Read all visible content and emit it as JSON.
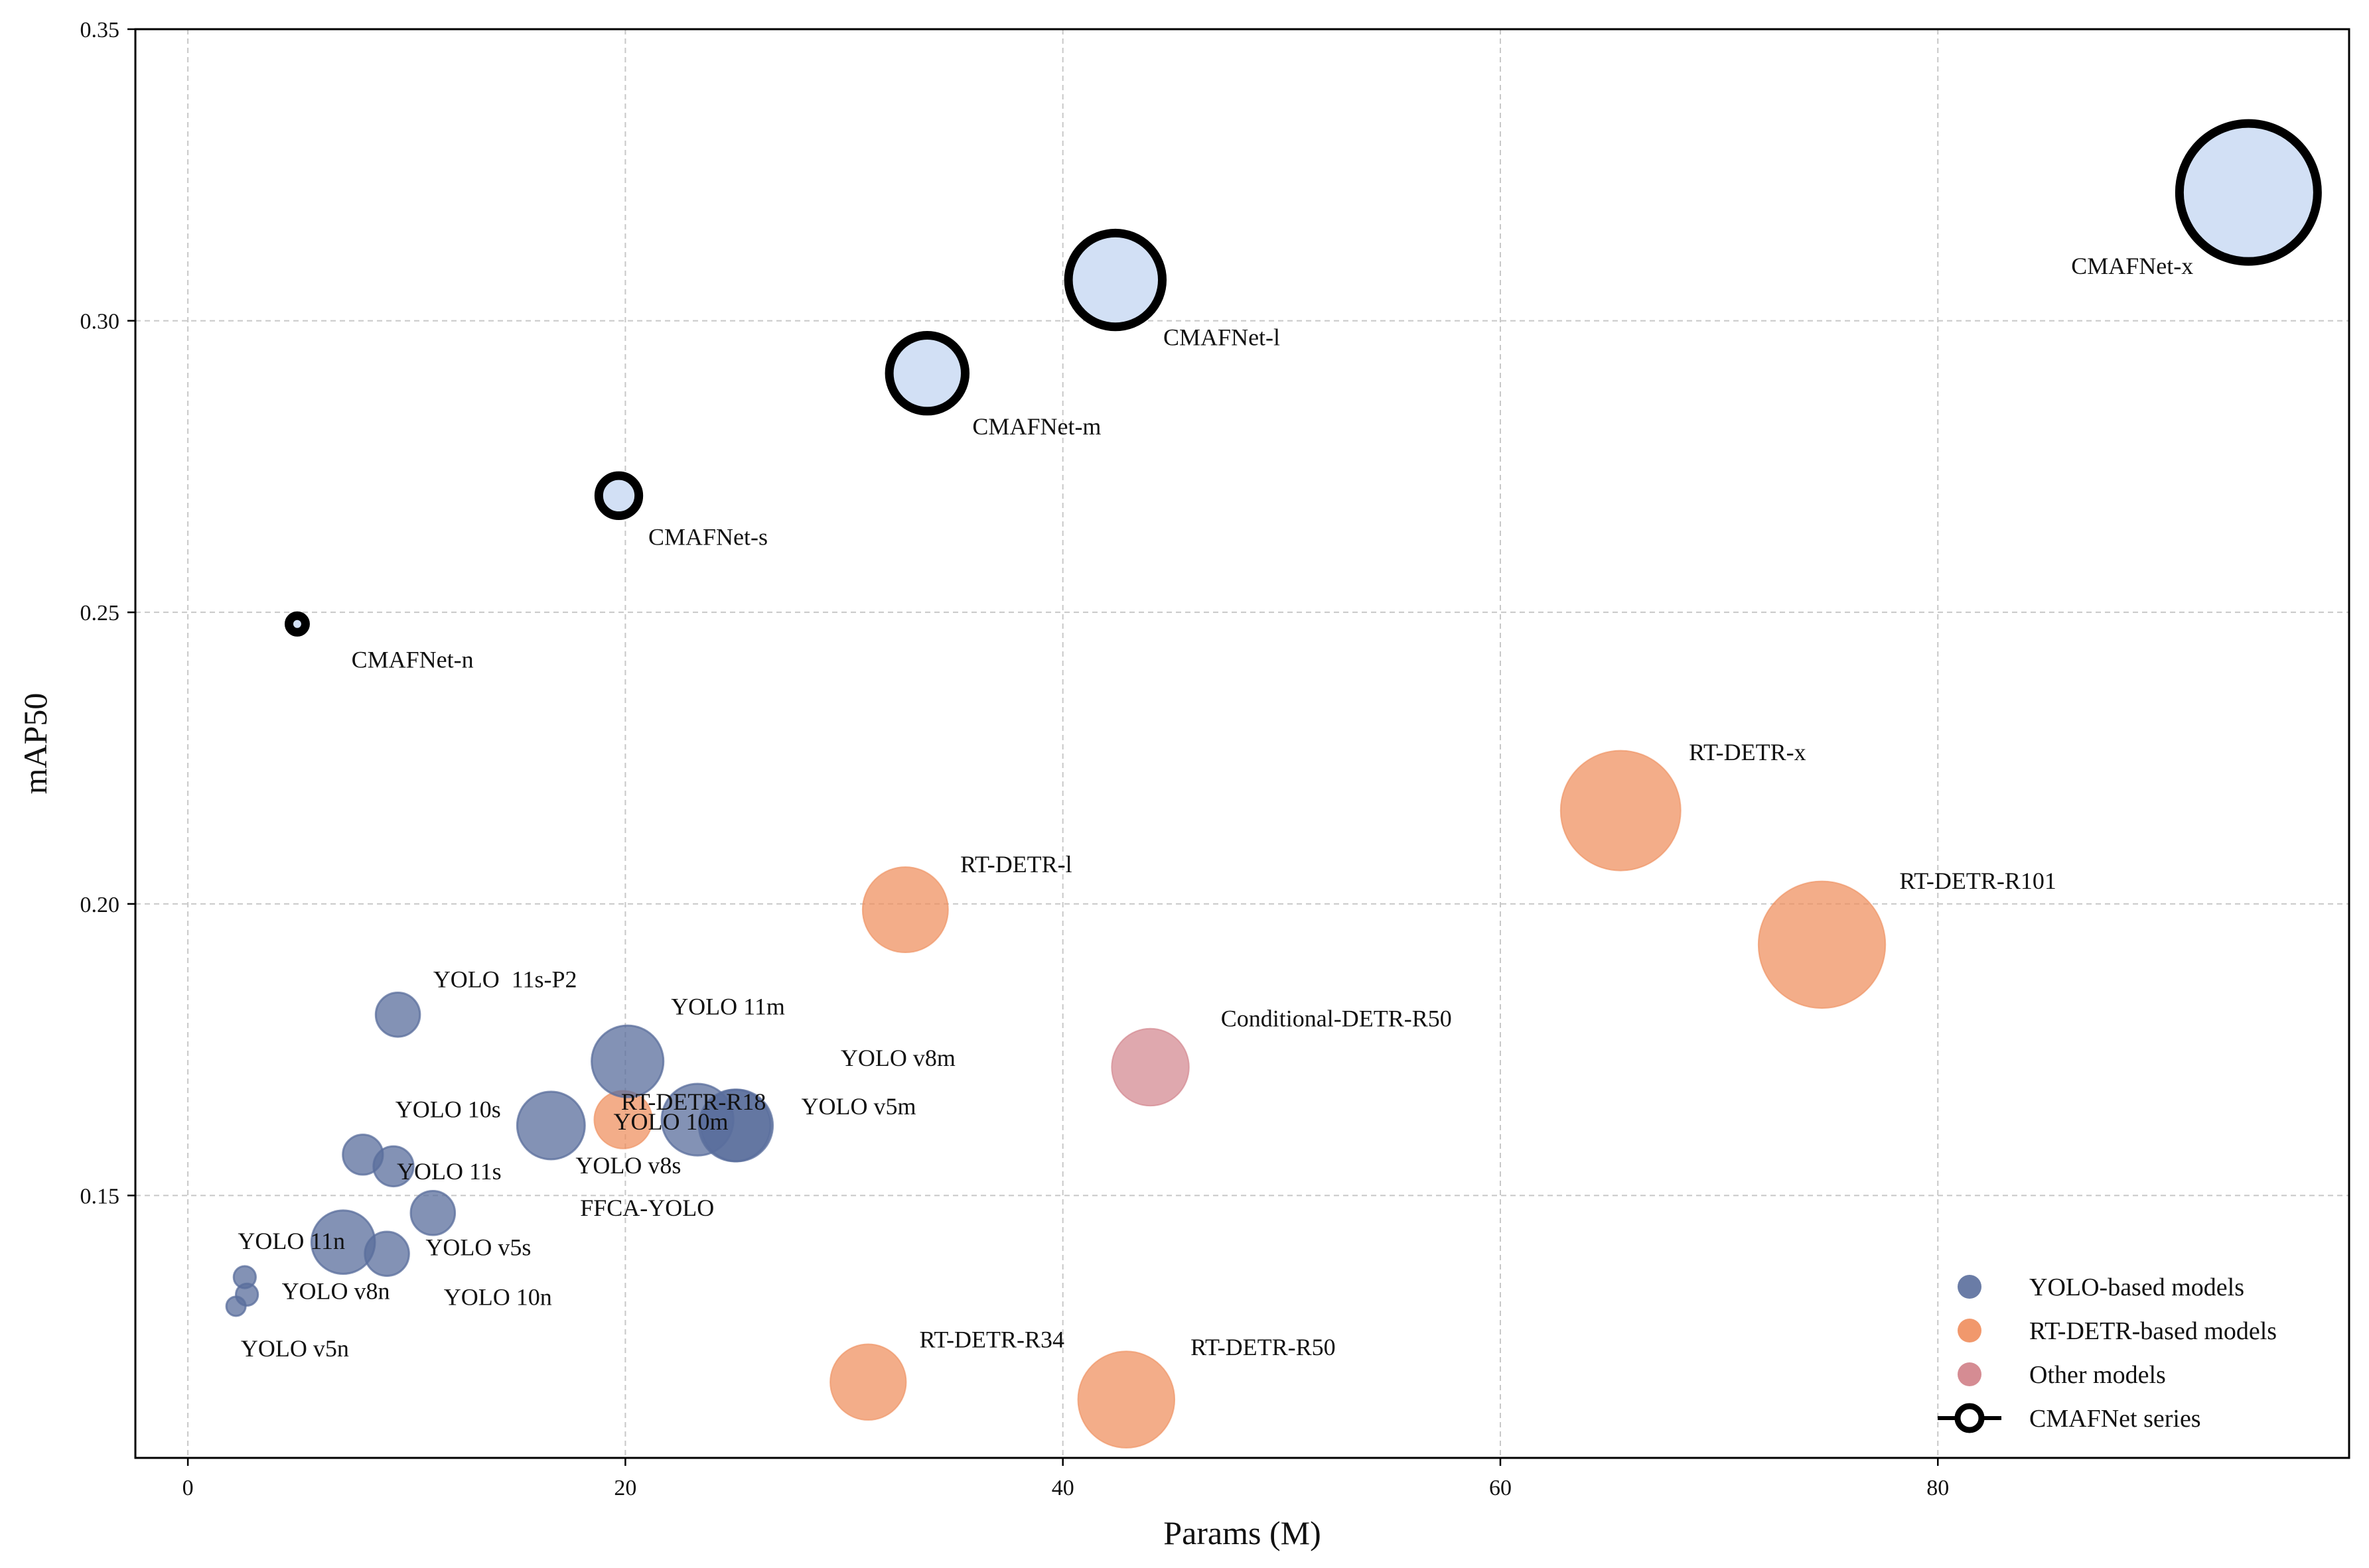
{
  "chart_data": {
    "type": "scatter",
    "variant": "bubble",
    "title": "",
    "xlabel": "Params (M)",
    "ylabel": "mAP50",
    "xlim": [
      -2.4,
      98.8
    ],
    "ylim": [
      0.105,
      0.35
    ],
    "xticks": [
      0,
      20,
      40,
      60,
      80
    ],
    "xtick_labels": [
      "0",
      "20",
      "40",
      "60",
      "80"
    ],
    "yticks": [
      0.15,
      0.2,
      0.25,
      0.3,
      0.35
    ],
    "ytick_labels": [
      "0.15",
      "0.20",
      "0.25",
      "0.30",
      "0.35"
    ],
    "grid": true,
    "legend_position": "bottom-right",
    "colors": {
      "yolo": "#5a6e9c",
      "rtdetr": "#ef8d5c",
      "other": "#d07f87",
      "cmafnet_fill": "#d2e0f5",
      "cmafnet_edge": "#000000"
    },
    "legend": [
      {
        "group": "yolo",
        "label": "YOLO-based models"
      },
      {
        "group": "rtdetr",
        "label": "RT-DETR-based models"
      },
      {
        "group": "other",
        "label": "Other models"
      },
      {
        "group": "cmafnet",
        "label": "CMAFNet series"
      }
    ],
    "points": [
      {
        "label": "CMAFNet-n",
        "group": "cmafnet",
        "x": 5.0,
        "y": 0.248,
        "size": 12
      },
      {
        "label": "CMAFNet-s",
        "group": "cmafnet",
        "x": 19.7,
        "y": 0.27,
        "size": 29
      },
      {
        "label": "CMAFNet-m",
        "group": "cmafnet",
        "x": 33.8,
        "y": 0.291,
        "size": 55
      },
      {
        "label": "CMAFNet-l",
        "group": "cmafnet",
        "x": 42.4,
        "y": 0.307,
        "size": 68
      },
      {
        "label": "CMAFNet-x",
        "group": "cmafnet",
        "x": 94.2,
        "y": 0.322,
        "size": 100
      },
      {
        "label": "RT-DETR-x",
        "group": "rtdetr",
        "x": 65.5,
        "y": 0.216,
        "size": 87
      },
      {
        "label": "RT-DETR-R101",
        "group": "rtdetr",
        "x": 74.7,
        "y": 0.193,
        "size": 92
      },
      {
        "label": "RT-DETR-l",
        "group": "rtdetr",
        "x": 32.8,
        "y": 0.199,
        "size": 62
      },
      {
        "label": "RT-DETR-R34",
        "group": "rtdetr",
        "x": 31.1,
        "y": 0.118,
        "size": 55
      },
      {
        "label": "RT-DETR-R50",
        "group": "rtdetr",
        "x": 42.9,
        "y": 0.115,
        "size": 70
      },
      {
        "label": "RT-DETR-R18",
        "group": "rtdetr",
        "x": 19.9,
        "y": 0.163,
        "size": 42
      },
      {
        "label": "Conditional-DETR-R50",
        "group": "other",
        "x": 44.0,
        "y": 0.172,
        "size": 56
      },
      {
        "label": "YOLO  11s-P2",
        "group": "yolo",
        "x": 9.6,
        "y": 0.181,
        "size": 32
      },
      {
        "label": "YOLO 11m",
        "group": "yolo",
        "x": 20.1,
        "y": 0.173,
        "size": 52
      },
      {
        "label": "YOLO v8m",
        "group": "yolo",
        "x": 25.0,
        "y": 0.162,
        "size": 52
      },
      {
        "label": "YOLO 10m",
        "group": "yolo",
        "x": 23.3,
        "y": 0.163,
        "size": 52
      },
      {
        "label": "YOLO v5m",
        "group": "yolo",
        "x": 25.1,
        "y": 0.162,
        "size": 52
      },
      {
        "label": "YOLO 10s",
        "group": "yolo",
        "x": 16.6,
        "y": 0.162,
        "size": 49
      },
      {
        "label": "YOLO v8s",
        "group": "yolo",
        "x": 9.4,
        "y": 0.155,
        "size": 29
      },
      {
        "label": "FFCA-YOLO",
        "group": "yolo",
        "x": 11.2,
        "y": 0.147,
        "size": 32
      },
      {
        "label": "YOLO 11s",
        "group": "yolo",
        "x": 8.0,
        "y": 0.157,
        "size": 29
      },
      {
        "label": "YOLO v5s",
        "group": "yolo",
        "x": 9.1,
        "y": 0.14,
        "size": 32
      },
      {
        "label": "YOLO 11n",
        "group": "yolo",
        "x": 7.1,
        "y": 0.142,
        "size": 46
      },
      {
        "label": "YOLO v8n",
        "group": "yolo",
        "x": 2.7,
        "y": 0.133,
        "size": 16
      },
      {
        "label": "YOLO 10n",
        "group": "yolo",
        "x": 2.6,
        "y": 0.136,
        "size": 16
      },
      {
        "label": "YOLO v5n",
        "group": "yolo",
        "x": 2.2,
        "y": 0.131,
        "size": 14
      }
    ]
  }
}
